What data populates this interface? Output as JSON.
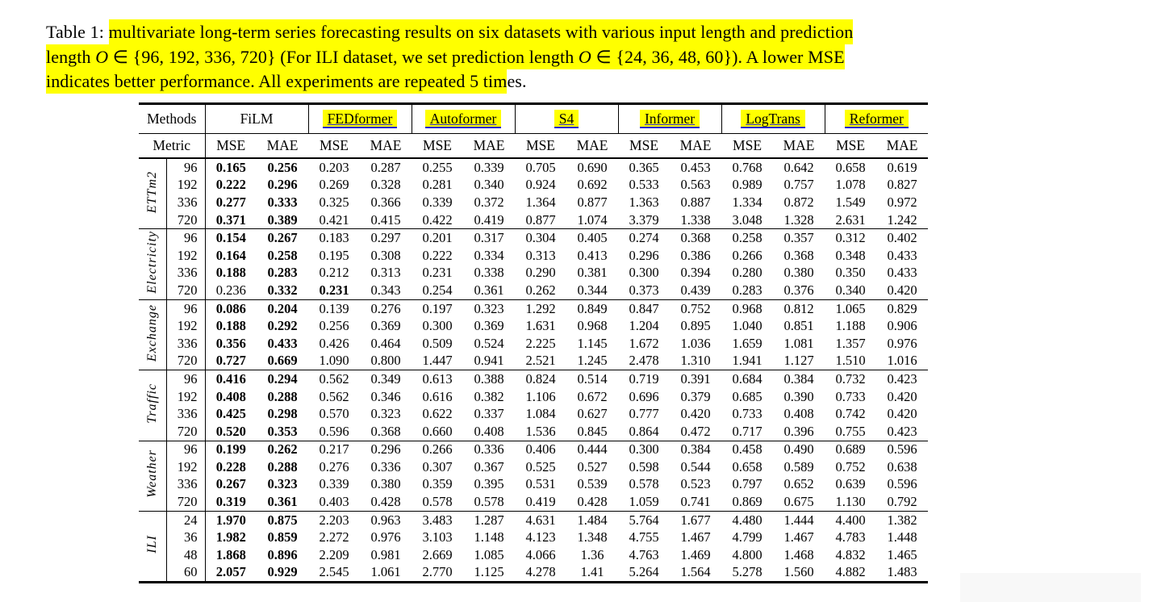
{
  "caption": {
    "prefix": "Table 1: ",
    "l1": "multivariate long-term series forecasting results on six datasets with various input length and prediction",
    "l2a": "length ",
    "l2o1": "O",
    "l2b": " ∈ {96, 192, 336, 720} (For ILI dataset, we set prediction length ",
    "l2o2": "O",
    "l2c": " ∈ {24, 36, 48, 60}). A lower MSE",
    "l3a": "indicates better performance. All experiments are repeated 5 tim",
    "l3b": "es."
  },
  "colors": {
    "highlight": "#ffff00",
    "link_underline": "#2323cd",
    "text": "#000000",
    "background": "#ffffff"
  },
  "header": {
    "methods_label": "Methods",
    "metric_label": "Metric",
    "mse": "MSE",
    "mae": "MAE",
    "methods": [
      {
        "name": "FiLM",
        "highlighted": false
      },
      {
        "name": "FEDformer",
        "highlighted": true
      },
      {
        "name": "Autoformer",
        "highlighted": true
      },
      {
        "name": "S4",
        "highlighted": true
      },
      {
        "name": "Informer",
        "highlighted": true
      },
      {
        "name": "LogTrans",
        "highlighted": true
      },
      {
        "name": "Reformer",
        "highlighted": true
      }
    ]
  },
  "sections": [
    {
      "name": "ETTm2",
      "rows": [
        {
          "len": "96",
          "bold": [
            0,
            1
          ],
          "values": [
            "0.165",
            "0.256",
            "0.203",
            "0.287",
            "0.255",
            "0.339",
            "0.705",
            "0.690",
            "0.365",
            "0.453",
            "0.768",
            "0.642",
            "0.658",
            "0.619"
          ]
        },
        {
          "len": "192",
          "bold": [
            0,
            1
          ],
          "values": [
            "0.222",
            "0.296",
            "0.269",
            "0.328",
            "0.281",
            "0.340",
            "0.924",
            "0.692",
            "0.533",
            "0.563",
            "0.989",
            "0.757",
            "1.078",
            "0.827"
          ]
        },
        {
          "len": "336",
          "bold": [
            0,
            1
          ],
          "values": [
            "0.277",
            "0.333",
            "0.325",
            "0.366",
            "0.339",
            "0.372",
            "1.364",
            "0.877",
            "1.363",
            "0.887",
            "1.334",
            "0.872",
            "1.549",
            "0.972"
          ]
        },
        {
          "len": "720",
          "bold": [
            0,
            1
          ],
          "values": [
            "0.371",
            "0.389",
            "0.421",
            "0.415",
            "0.422",
            "0.419",
            "0.877",
            "1.074",
            "3.379",
            "1.338",
            "3.048",
            "1.328",
            "2.631",
            "1.242"
          ]
        }
      ]
    },
    {
      "name": "Electricity",
      "rows": [
        {
          "len": "96",
          "bold": [
            0,
            1
          ],
          "values": [
            "0.154",
            "0.267",
            "0.183",
            "0.297",
            "0.201",
            "0.317",
            "0.304",
            "0.405",
            "0.274",
            "0.368",
            "0.258",
            "0.357",
            "0.312",
            "0.402"
          ]
        },
        {
          "len": "192",
          "bold": [
            0,
            1
          ],
          "values": [
            "0.164",
            "0.258",
            "0.195",
            "0.308",
            "0.222",
            "0.334",
            "0.313",
            "0.413",
            "0.296",
            "0.386",
            "0.266",
            "0.368",
            "0.348",
            "0.433"
          ]
        },
        {
          "len": "336",
          "bold": [
            0,
            1
          ],
          "values": [
            "0.188",
            "0.283",
            "0.212",
            "0.313",
            "0.231",
            "0.338",
            "0.290",
            "0.381",
            "0.300",
            "0.394",
            "0.280",
            "0.380",
            "0.350",
            "0.433"
          ]
        },
        {
          "len": "720",
          "bold": [
            1,
            2
          ],
          "values": [
            "0.236",
            "0.332",
            "0.231",
            "0.343",
            "0.254",
            "0.361",
            "0.262",
            "0.344",
            "0.373",
            "0.439",
            "0.283",
            "0.376",
            "0.340",
            "0.420"
          ]
        }
      ]
    },
    {
      "name": "Exchange",
      "rows": [
        {
          "len": "96",
          "bold": [
            0,
            1
          ],
          "values": [
            "0.086",
            "0.204",
            "0.139",
            "0.276",
            "0.197",
            "0.323",
            "1.292",
            "0.849",
            "0.847",
            "0.752",
            "0.968",
            "0.812",
            "1.065",
            "0.829"
          ]
        },
        {
          "len": "192",
          "bold": [
            0,
            1
          ],
          "values": [
            "0.188",
            "0.292",
            "0.256",
            "0.369",
            "0.300",
            "0.369",
            "1.631",
            "0.968",
            "1.204",
            "0.895",
            "1.040",
            "0.851",
            "1.188",
            "0.906"
          ]
        },
        {
          "len": "336",
          "bold": [
            0,
            1
          ],
          "values": [
            "0.356",
            "0.433",
            "0.426",
            "0.464",
            "0.509",
            "0.524",
            "2.225",
            "1.145",
            "1.672",
            "1.036",
            "1.659",
            "1.081",
            "1.357",
            "0.976"
          ]
        },
        {
          "len": "720",
          "bold": [
            0,
            1
          ],
          "values": [
            "0.727",
            "0.669",
            "1.090",
            "0.800",
            "1.447",
            "0.941",
            "2.521",
            "1.245",
            "2.478",
            "1.310",
            "1.941",
            "1.127",
            "1.510",
            "1.016"
          ]
        }
      ]
    },
    {
      "name": "Traffic",
      "rows": [
        {
          "len": "96",
          "bold": [
            0,
            1
          ],
          "values": [
            "0.416",
            "0.294",
            "0.562",
            "0.349",
            "0.613",
            "0.388",
            "0.824",
            "0.514",
            "0.719",
            "0.391",
            "0.684",
            "0.384",
            "0.732",
            "0.423"
          ]
        },
        {
          "len": "192",
          "bold": [
            0,
            1
          ],
          "values": [
            "0.408",
            "0.288",
            "0.562",
            "0.346",
            "0.616",
            "0.382",
            "1.106",
            "0.672",
            "0.696",
            "0.379",
            "0.685",
            "0.390",
            "0.733",
            "0.420"
          ]
        },
        {
          "len": "336",
          "bold": [
            0,
            1
          ],
          "values": [
            "0.425",
            "0.298",
            "0.570",
            "0.323",
            "0.622",
            "0.337",
            "1.084",
            "0.627",
            "0.777",
            "0.420",
            "0.733",
            "0.408",
            "0.742",
            "0.420"
          ]
        },
        {
          "len": "720",
          "bold": [
            0,
            1
          ],
          "values": [
            "0.520",
            "0.353",
            "0.596",
            "0.368",
            "0.660",
            "0.408",
            "1.536",
            "0.845",
            "0.864",
            "0.472",
            "0.717",
            "0.396",
            "0.755",
            "0.423"
          ]
        }
      ]
    },
    {
      "name": "Weather",
      "rows": [
        {
          "len": "96",
          "bold": [
            0,
            1
          ],
          "values": [
            "0.199",
            "0.262",
            "0.217",
            "0.296",
            "0.266",
            "0.336",
            "0.406",
            "0.444",
            "0.300",
            "0.384",
            "0.458",
            "0.490",
            "0.689",
            "0.596"
          ]
        },
        {
          "len": "192",
          "bold": [
            0,
            1
          ],
          "values": [
            "0.228",
            "0.288",
            "0.276",
            "0.336",
            "0.307",
            "0.367",
            "0.525",
            "0.527",
            "0.598",
            "0.544",
            "0.658",
            "0.589",
            "0.752",
            "0.638"
          ]
        },
        {
          "len": "336",
          "bold": [
            0,
            1
          ],
          "values": [
            "0.267",
            "0.323",
            "0.339",
            "0.380",
            "0.359",
            "0.395",
            "0.531",
            "0.539",
            "0.578",
            "0.523",
            "0.797",
            "0.652",
            "0.639",
            "0.596"
          ]
        },
        {
          "len": "720",
          "bold": [
            0,
            1
          ],
          "values": [
            "0.319",
            "0.361",
            "0.403",
            "0.428",
            "0.578",
            "0.578",
            "0.419",
            "0.428",
            "1.059",
            "0.741",
            "0.869",
            "0.675",
            "1.130",
            "0.792"
          ]
        }
      ]
    },
    {
      "name": "ILI",
      "rows": [
        {
          "len": "24",
          "bold": [
            0,
            1
          ],
          "values": [
            "1.970",
            "0.875",
            "2.203",
            "0.963",
            "3.483",
            "1.287",
            "4.631",
            "1.484",
            "5.764",
            "1.677",
            "4.480",
            "1.444",
            "4.400",
            "1.382"
          ]
        },
        {
          "len": "36",
          "bold": [
            0,
            1
          ],
          "values": [
            "1.982",
            "0.859",
            "2.272",
            "0.976",
            "3.103",
            "1.148",
            "4.123",
            "1.348",
            "4.755",
            "1.467",
            "4.799",
            "1.467",
            "4.783",
            "1.448"
          ]
        },
        {
          "len": "48",
          "bold": [
            0,
            1
          ],
          "values": [
            "1.868",
            "0.896",
            "2.209",
            "0.981",
            "2.669",
            "1.085",
            "4.066",
            "1.36",
            "4.763",
            "1.469",
            "4.800",
            "1.468",
            "4.832",
            "1.465"
          ]
        },
        {
          "len": "60",
          "bold": [
            0,
            1
          ],
          "values": [
            "2.057",
            "0.929",
            "2.545",
            "1.061",
            "2.770",
            "1.125",
            "4.278",
            "1.41",
            "5.264",
            "1.564",
            "5.278",
            "1.560",
            "4.882",
            "1.483"
          ]
        }
      ]
    }
  ]
}
